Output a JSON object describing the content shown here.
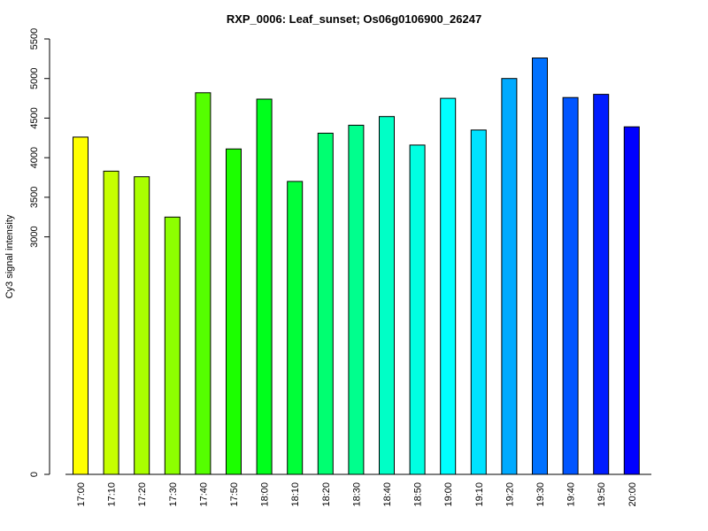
{
  "chart_data": {
    "type": "bar",
    "title": "RXP_0006: Leaf_sunset; Os06g0106900_26247",
    "xlabel": "",
    "ylabel": "Cy3 signal intensity",
    "ylim": [
      0,
      5500
    ],
    "yticks": [
      0,
      3000,
      3500,
      4000,
      4500,
      5000,
      5500
    ],
    "categories": [
      "17:00",
      "17:10",
      "17:20",
      "17:30",
      "17:40",
      "17:50",
      "18:00",
      "18:10",
      "18:20",
      "18:30",
      "18:40",
      "18:50",
      "19:00",
      "19:10",
      "19:20",
      "19:30",
      "19:40",
      "19:50",
      "20:00"
    ],
    "values": [
      4260,
      3830,
      3760,
      3250,
      4820,
      4110,
      4740,
      3700,
      4310,
      4410,
      4520,
      4160,
      4750,
      4350,
      5000,
      5260,
      4760,
      4800,
      4390
    ],
    "colors": [
      "#ffff00",
      "#c6ff00",
      "#aaff00",
      "#8dff00",
      "#55ff00",
      "#1cff00",
      "#00ff1c",
      "#00ff38",
      "#00ff71",
      "#00ff8d",
      "#00ffc6",
      "#00ffe2",
      "#00ffff",
      "#00e2ff",
      "#00aaff",
      "#0071ff",
      "#0055ff",
      "#001cff",
      "#0000ff"
    ],
    "grid": false,
    "legend": "none"
  }
}
